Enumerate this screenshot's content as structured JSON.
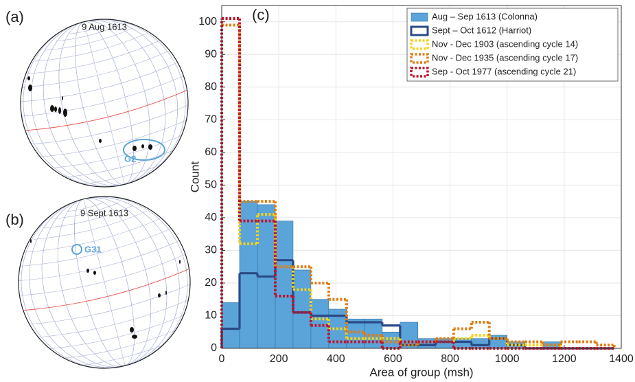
{
  "panels": [
    {
      "label": "(a)",
      "date": "9 Aug 1613",
      "group": "G2"
    },
    {
      "label": "(b)",
      "date": "9 Sept 1613",
      "group": "G31"
    }
  ],
  "chart_data": {
    "type": "histogram",
    "panel_label": "(c)",
    "x_label": "Area of group (msh)",
    "y_label": "Count",
    "bins": [
      0,
      62.5,
      125,
      187.5,
      250,
      312.5,
      375,
      437.5,
      500,
      562.5,
      625,
      687.5,
      750,
      812.5,
      875,
      937.5,
      1000,
      1062.5,
      1125,
      1187.5,
      1250,
      1312.5,
      1375
    ],
    "series": [
      {
        "name": "Aug – Sep 1613 (Colonna)",
        "color": "#5aa4da",
        "style": "bar",
        "values": [
          14,
          45,
          44,
          39,
          24,
          15,
          12,
          9,
          9,
          5,
          8,
          3,
          3,
          3,
          3,
          4,
          2,
          0,
          2,
          0,
          0,
          0
        ]
      },
      {
        "name": "Sept – Oct 1612 (Harriot)",
        "color": "#2a4a86",
        "style": "solid",
        "values": [
          6,
          23,
          22,
          27,
          11,
          10,
          10,
          8,
          8,
          7,
          1,
          1,
          2,
          2,
          1,
          3,
          1,
          0,
          0,
          0,
          0,
          0
        ]
      },
      {
        "name": "Nov - Dec 1903 (ascending cycle 14)",
        "color": "#f5d21a",
        "style": "dotted",
        "values": [
          99,
          32,
          41,
          25,
          18,
          9,
          6,
          3,
          3,
          3,
          2,
          2,
          2,
          3,
          4,
          3,
          1,
          1,
          1,
          0,
          0,
          0
        ]
      },
      {
        "name": "Nov - Dec 1935 (ascending cycle 17)",
        "color": "#e07d12",
        "style": "dotted",
        "values": [
          99,
          45,
          45,
          25,
          25,
          20,
          15,
          5,
          4,
          2,
          1,
          2,
          3,
          6,
          8,
          3,
          2,
          2,
          1,
          2,
          2,
          1
        ]
      },
      {
        "name": "Sep - Oct 1977 (ascending cycle 21)",
        "color": "#c2132c",
        "style": "dotted",
        "values": [
          101,
          39,
          39,
          16,
          11,
          7,
          2,
          2,
          2,
          0,
          2,
          2,
          2,
          0,
          0,
          0,
          0,
          0,
          0,
          0,
          0,
          0
        ]
      }
    ],
    "xlim": [
      0,
      1400
    ],
    "xticks": [
      0,
      200,
      400,
      600,
      800,
      1000,
      1200,
      1400
    ],
    "ylim": [
      0,
      105
    ],
    "yticks": [
      0,
      10,
      20,
      30,
      40,
      50,
      60,
      70,
      80,
      90,
      100
    ],
    "grid": true,
    "legend": "upper right"
  }
}
